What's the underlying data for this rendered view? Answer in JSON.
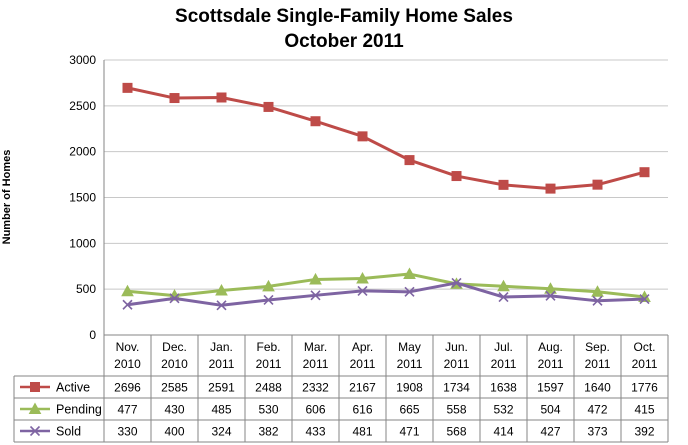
{
  "chart_data": {
    "type": "line",
    "title": "Scottsdale Single-Family Home Sales",
    "subtitle": "October 2011",
    "ylabel": "Number of Homes",
    "xlabel": "",
    "ylim": [
      0,
      3000
    ],
    "yticks": [
      0,
      500,
      1000,
      1500,
      2000,
      2500,
      3000
    ],
    "grid": true,
    "legend": "data-table",
    "categories": [
      [
        "Nov.",
        "2010"
      ],
      [
        "Dec.",
        "2010"
      ],
      [
        "Jan.",
        "2011"
      ],
      [
        "Feb.",
        "2011"
      ],
      [
        "Mar.",
        "2011"
      ],
      [
        "Apr.",
        "2011"
      ],
      [
        "May",
        "2011"
      ],
      [
        "Jun.",
        "2011"
      ],
      [
        "Jul.",
        "2011"
      ],
      [
        "Aug.",
        "2011"
      ],
      [
        "Sep.",
        "2011"
      ],
      [
        "Oct.",
        "2011"
      ]
    ],
    "series": [
      {
        "name": "Active",
        "color": "#BE4B48",
        "marker": "square",
        "values": [
          2696,
          2585,
          2591,
          2488,
          2332,
          2167,
          1908,
          1734,
          1638,
          1597,
          1640,
          1776
        ]
      },
      {
        "name": "Pending",
        "color": "#9BBB59",
        "marker": "triangle",
        "values": [
          477,
          430,
          485,
          530,
          606,
          616,
          665,
          558,
          532,
          504,
          472,
          415
        ]
      },
      {
        "name": "Sold",
        "color": "#7E64A2",
        "marker": "x",
        "values": [
          330,
          400,
          324,
          382,
          433,
          481,
          471,
          568,
          414,
          427,
          373,
          392
        ]
      }
    ]
  }
}
